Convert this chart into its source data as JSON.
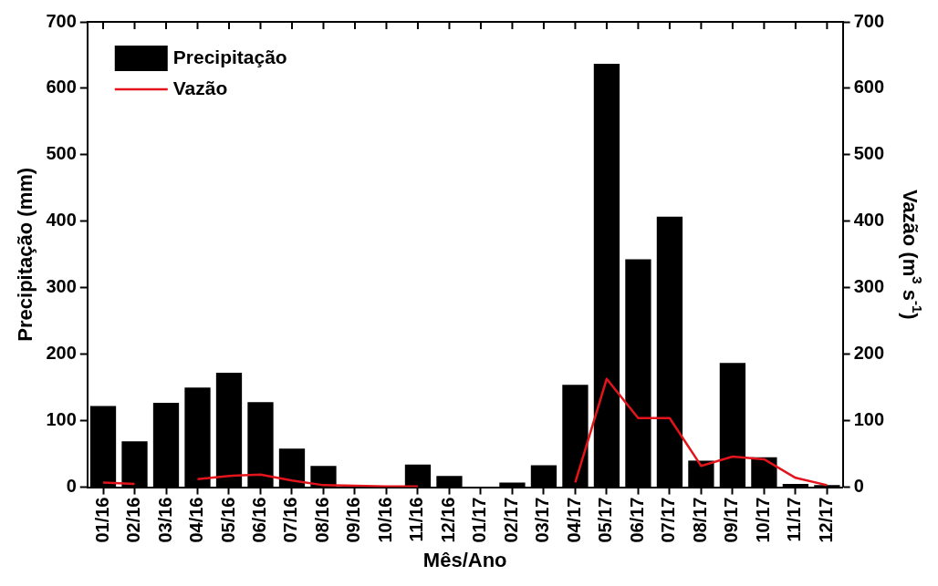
{
  "chart_data": {
    "type": "bar",
    "xlabel": "Mês/Ano",
    "ylabel": "Precipitação (mm)",
    "y2label": "Vazão (m$^{3}$ s$^{-1}$)",
    "categories": [
      "01/16",
      "02/16",
      "03/16",
      "04/16",
      "05/16",
      "06/16",
      "07/16",
      "08/16",
      "09/16",
      "10/16",
      "11/16",
      "12/16",
      "01/17",
      "02/17",
      "03/17",
      "04/17",
      "05/17",
      "06/17",
      "07/17",
      "08/17",
      "09/17",
      "10/17",
      "11/17",
      "12/17"
    ],
    "series": [
      {
        "name": "Precipitação",
        "color": "#000000",
        "values": [
          122,
          69,
          127,
          150,
          172,
          128,
          58,
          32,
          0,
          0,
          34,
          17,
          0,
          7,
          33,
          154,
          637,
          343,
          407,
          40,
          187,
          45,
          5,
          3
        ]
      },
      {
        "name": "Vazão",
        "type": "line",
        "axis": "y2",
        "color": "#e3141b",
        "values": [
          7,
          5,
          null,
          12,
          17,
          19,
          10,
          3,
          2,
          1,
          1,
          null,
          null,
          null,
          null,
          7,
          163,
          104,
          104,
          32,
          46,
          42,
          14,
          3
        ]
      }
    ],
    "ylim": [
      0,
      700
    ],
    "yticks": [
      0,
      100,
      200,
      300,
      400,
      500,
      600,
      700
    ],
    "y2lim": [
      0,
      700
    ],
    "y2ticks": [
      0,
      100,
      200,
      300,
      400,
      500,
      600,
      700
    ],
    "grid": false,
    "legend": "top left",
    "marker": "none",
    "line_style": "solid"
  }
}
